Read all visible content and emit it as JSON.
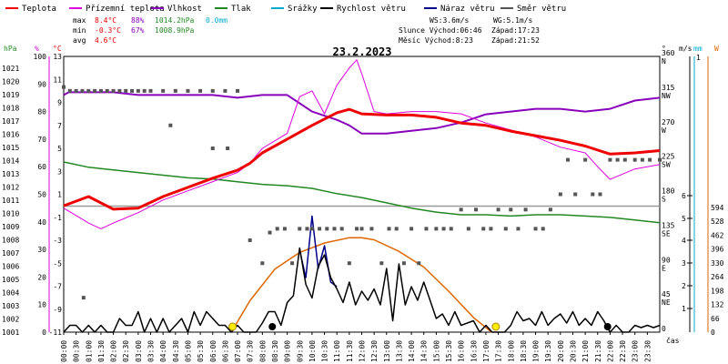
{
  "chart_data": {
    "type": "line",
    "title": "23.2.2023",
    "legend": [
      {
        "name": "Teplota",
        "color": "#ee0000"
      },
      {
        "name": "Přízemní teplota",
        "color": "#dd00dd"
      },
      {
        "name": "Vlhkost",
        "color": "#8800bb"
      },
      {
        "name": "Tlak",
        "color": "#228822"
      },
      {
        "name": "Srážky",
        "color": "#00aacc"
      },
      {
        "name": "Rychlost větru",
        "color": "#000000"
      },
      {
        "name": "Náraz větru",
        "color": "#000088"
      },
      {
        "name": "Směr větru",
        "color": "#555555"
      }
    ],
    "stats": {
      "max_label": "max",
      "max_temp": "8.4°C",
      "max_hum": "88%",
      "max_press": "1014.2hPa",
      "precip": "0.0mm",
      "min_label": "min",
      "min_temp": "-0.3°C",
      "min_hum": "67%",
      "min_press": "1008.9hPa",
      "avg_label": "avg",
      "avg_temp": "4.6°C",
      "ws": "WS:3.6m/s",
      "wg": "WG:5.1m/s",
      "sun": "Slunce Východ:06:46",
      "sun_set": "Západ:17:23",
      "moon": "Měsíc  Východ:8:23",
      "moon_set": "Západ:21:52"
    },
    "axis_units": {
      "hpa": "hPa",
      "pct": "%",
      "temp": "°C",
      "dir": "°",
      "ms": "m/s",
      "mm": "mm",
      "w": "W"
    },
    "xlabel": "čas",
    "x_ticks": [
      "00:00",
      "00:30",
      "01:00",
      "01:30",
      "02:00",
      "02:30",
      "03:00",
      "03:30",
      "04:00",
      "04:30",
      "05:00",
      "05:30",
      "06:00",
      "06:30",
      "07:00",
      "07:30",
      "08:00",
      "08:30",
      "09:00",
      "09:30",
      "10:00",
      "10:30",
      "11:00",
      "11:30",
      "12:00",
      "12:30",
      "13:00",
      "13:30",
      "14:00",
      "14:30",
      "15:00",
      "15:30",
      "16:00",
      "16:30",
      "17:00",
      "17:30",
      "18:00",
      "18:30",
      "19:00",
      "19:30",
      "20:00",
      "20:30",
      "21:00",
      "21:30",
      "22:00",
      "22:30",
      "23:00",
      "23:30"
    ],
    "hpa_ticks": [
      "1021",
      "1020",
      "1019",
      "1018",
      "1017",
      "1016",
      "1015",
      "1014",
      "1013",
      "1012",
      "1011",
      "1010",
      "1009",
      "1008",
      "1007",
      "1006",
      "1005",
      "1004",
      "1003",
      "1002",
      "1001"
    ],
    "pct_ticks": [
      "100",
      "90",
      "80",
      "70",
      "60",
      "50",
      "40",
      "30",
      "20",
      "10",
      "0"
    ],
    "temp_ticks": [
      "13",
      "11",
      "9",
      "7",
      "5",
      "3",
      "1",
      "-1",
      "-3",
      "-5",
      "-7",
      "-9",
      "-11"
    ],
    "dir_ticks": [
      {
        "deg": "360",
        "lab": "N"
      },
      {
        "deg": "315",
        "lab": "NW"
      },
      {
        "deg": "270",
        "lab": "W"
      },
      {
        "deg": "225",
        "lab": "SW"
      },
      {
        "deg": "180",
        "lab": "S"
      },
      {
        "deg": "135",
        "lab": "SE"
      },
      {
        "deg": "90",
        "lab": "E"
      },
      {
        "deg": "45",
        "lab": "NE"
      },
      {
        "deg": "0",
        "lab": ""
      }
    ],
    "ms_ticks": [
      {
        "v": "6",
        "y": 215
      },
      {
        "v": "5",
        "y": 240
      },
      {
        "v": "4",
        "y": 264
      },
      {
        "v": "3",
        "y": 289
      },
      {
        "v": "2",
        "y": 314
      },
      {
        "v": "1",
        "y": 339
      }
    ],
    "mm_top": "1",
    "w_ticks": [
      "594",
      "528",
      "462",
      "396",
      "330",
      "264",
      "198",
      "132",
      "66",
      "0"
    ],
    "series": {
      "temperature": {
        "x": [
          0,
          1,
          2,
          3,
          4,
          5,
          6,
          7,
          7.5,
          8,
          9,
          10,
          11,
          11.5,
          12,
          13,
          14,
          15,
          16,
          17,
          18,
          19,
          20,
          21,
          22,
          23,
          24
        ],
        "y": [
          0,
          0.8,
          -0.3,
          -0.2,
          0.8,
          1.6,
          2.4,
          3.1,
          3.7,
          4.6,
          5.8,
          7,
          8.1,
          8.4,
          8.0,
          7.9,
          7.9,
          7.7,
          7.2,
          7.0,
          6.5,
          6.1,
          5.7,
          5.2,
          4.5,
          4.6,
          4.8
        ]
      },
      "ground_temperature": {
        "x": [
          0,
          1,
          1.5,
          2,
          3,
          4,
          5,
          6,
          7,
          7.5,
          8,
          9,
          9.5,
          10,
          10.5,
          11,
          11.5,
          11.8,
          12,
          12.5,
          13,
          14,
          15,
          16,
          17,
          18,
          19,
          20,
          21,
          21.5,
          22,
          23,
          24
        ],
        "y": [
          -0.2,
          -1.5,
          -2,
          -1.5,
          -0.6,
          0.5,
          1.3,
          2.1,
          2.9,
          3.7,
          5,
          6.3,
          9.5,
          10,
          8,
          10.5,
          12,
          12.7,
          11.5,
          8.2,
          8,
          8.2,
          8.2,
          8,
          7.2,
          6.6,
          6,
          5.1,
          4.6,
          3.4,
          2.3,
          3.2,
          3.6
        ]
      },
      "humidity": {
        "x": [
          0,
          0.2,
          1,
          2,
          3,
          4,
          5,
          6,
          7,
          8,
          9,
          9.5,
          10,
          11,
          11.5,
          12,
          13,
          14,
          15,
          16,
          17,
          18,
          19,
          20,
          21,
          22,
          23,
          24
        ],
        "y": [
          86,
          87,
          87,
          87,
          86,
          86,
          86,
          86,
          85,
          86,
          86,
          83,
          80,
          77,
          75,
          72,
          72,
          73,
          74,
          76,
          79,
          80,
          81,
          81,
          80,
          81,
          84,
          85
        ]
      },
      "pressure": {
        "x": [
          0,
          1,
          2,
          3,
          4,
          5,
          6,
          7,
          8,
          9,
          10,
          11,
          12,
          13,
          14,
          15,
          16,
          17,
          18,
          19,
          20,
          21,
          22,
          23,
          24
        ],
        "y": [
          1013.9,
          1013.5,
          1013.3,
          1013.1,
          1012.9,
          1012.7,
          1012.6,
          1012.4,
          1012.2,
          1012.1,
          1011.9,
          1011.5,
          1011.2,
          1010.8,
          1010.4,
          1010.1,
          1009.9,
          1009.9,
          1009.8,
          1009.9,
          1009.9,
          1009.8,
          1009.7,
          1009.5,
          1009.3
        ]
      },
      "wind_speed": {
        "x": [
          0,
          0.25,
          0.5,
          0.75,
          1,
          1.25,
          1.5,
          1.75,
          2,
          2.25,
          2.5,
          2.75,
          3,
          3.25,
          3.5,
          3.75,
          4,
          4.25,
          4.5,
          4.75,
          5,
          5.25,
          5.5,
          5.75,
          6,
          6.25,
          6.5,
          6.75,
          7,
          7.25,
          7.5,
          7.75,
          8,
          8.25,
          8.5,
          8.75,
          9,
          9.25,
          9.5,
          9.75,
          10,
          10.25,
          10.5,
          10.75,
          11,
          11.25,
          11.5,
          11.75,
          12,
          12.25,
          12.5,
          12.75,
          13,
          13.25,
          13.5,
          13.75,
          14,
          14.25,
          14.5,
          14.75,
          15,
          15.25,
          15.5,
          15.75,
          16,
          16.25,
          16.5,
          16.75,
          17,
          17.25,
          17.5,
          17.75,
          18,
          18.25,
          18.5,
          18.75,
          19,
          19.25,
          19.5,
          19.75,
          20,
          20.25,
          20.5,
          20.75,
          21,
          21.25,
          21.5,
          21.75,
          22,
          22.25,
          22.5,
          22.75,
          23,
          23.25,
          23.5,
          23.75,
          24
        ],
        "y": [
          0,
          0.3,
          0.3,
          0,
          0.3,
          0,
          0.3,
          0,
          0,
          0.6,
          0.3,
          0.3,
          0.9,
          0,
          0.6,
          0,
          0.6,
          0,
          0.3,
          0.6,
          0,
          0.9,
          0.3,
          0.9,
          0.6,
          0.3,
          0.3,
          0,
          0.3,
          0,
          0,
          0,
          0.4,
          0.9,
          0.9,
          0.3,
          1.3,
          1.6,
          3.7,
          2.1,
          1.5,
          2.9,
          3.4,
          2.4,
          1.9,
          1.3,
          2.2,
          1.2,
          1.8,
          1.4,
          1.9,
          1.2,
          2.8,
          0.5,
          3.0,
          1.2,
          2.0,
          1.4,
          2.2,
          1.4,
          0.6,
          0.8,
          0.3,
          0.9,
          0.3,
          0.4,
          0.5,
          0,
          0.3,
          0,
          0,
          0,
          0.3,
          0.9,
          0.5,
          0.6,
          0.3,
          0.9,
          0.3,
          0.6,
          0.8,
          0.4,
          0.9,
          0.3,
          0.6,
          0.3,
          0.9,
          0.5,
          0,
          0.3,
          0,
          0,
          0.3,
          0.2,
          0.3,
          0.2,
          0.3
        ]
      },
      "wind_gust": {
        "x": [
          9.5,
          9.75,
          10,
          10.25,
          10.5,
          10.75,
          11
        ],
        "y": [
          3.6,
          2.4,
          5.1,
          2.8,
          3.8,
          2.2,
          2.0
        ]
      },
      "wind_direction": {
        "x": [
          0,
          0.25,
          0.5,
          0.75,
          1,
          1.25,
          1.5,
          1.75,
          2,
          2.25,
          2.5,
          2.75,
          3,
          3.25,
          3.5,
          4,
          4.5,
          5,
          5.5,
          6,
          6.5,
          7,
          0.8,
          4.3,
          6.0,
          6.6,
          7.5,
          8,
          8.3,
          8.6,
          8.9,
          9.2,
          9.5,
          9.8,
          10,
          10.3,
          10.6,
          10.9,
          11.2,
          11.5,
          11.8,
          12,
          12.4,
          12.8,
          13.1,
          13.4,
          13.7,
          14,
          14.3,
          14.6,
          15,
          15.3,
          15.6,
          16,
          16.3,
          16.6,
          16.9,
          17.2,
          17.5,
          17.8,
          18,
          18.3,
          18.6,
          19,
          19.3,
          19.6,
          20,
          20.3,
          20.6,
          21,
          21.3,
          21.6,
          22,
          22.3,
          22.6,
          23,
          23.3,
          23.6,
          24
        ],
        "y": [
          320,
          315,
          315,
          315,
          315,
          315,
          315,
          315,
          315,
          315,
          315,
          315,
          315,
          315,
          315,
          315,
          315,
          315,
          315,
          315,
          315,
          315,
          45,
          270,
          240,
          240,
          120,
          90,
          130,
          135,
          135,
          90,
          135,
          135,
          135,
          135,
          135,
          135,
          135,
          90,
          135,
          135,
          135,
          90,
          135,
          135,
          90,
          135,
          90,
          135,
          135,
          135,
          135,
          160,
          135,
          160,
          135,
          135,
          160,
          135,
          160,
          135,
          160,
          135,
          135,
          160,
          180,
          225,
          180,
          225,
          180,
          180,
          225,
          225,
          225,
          225,
          225,
          225,
          225
        ]
      },
      "solar_radiation": {
        "x": [
          6.75,
          7.5,
          8.5,
          9.5,
          10.5,
          11.5,
          12,
          12.5,
          13.5,
          14.5,
          15.5,
          16.5,
          17.23
        ],
        "y": [
          0,
          150,
          300,
          380,
          425,
          450,
          450,
          440,
          385,
          310,
          195,
          70,
          0
        ]
      },
      "sun_markers": [
        {
          "x": 6.8,
          "y": 0
        },
        {
          "x": 17.4,
          "y": 0
        }
      ],
      "moon_markers": [
        {
          "x": 8.4,
          "y": 0
        },
        {
          "x": 21.9,
          "y": 0
        }
      ]
    },
    "ranges": {
      "x": [
        0,
        24
      ],
      "hpa": [
        1001,
        1021.9
      ],
      "pct": [
        0,
        100
      ],
      "temp": [
        -11,
        13
      ],
      "dir": [
        0,
        360
      ],
      "ms": [
        0,
        6
      ],
      "w": [
        0,
        594
      ]
    }
  }
}
